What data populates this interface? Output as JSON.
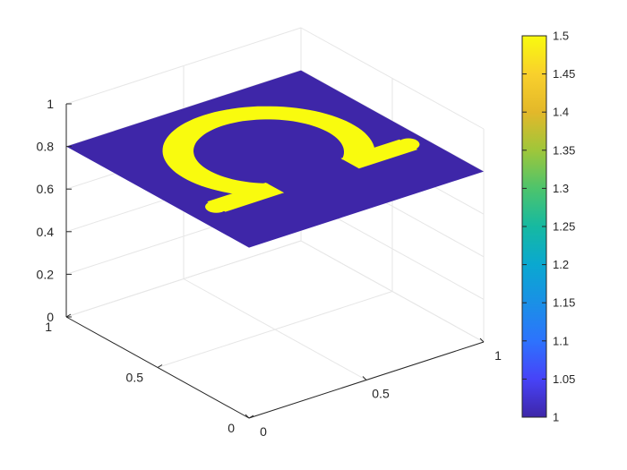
{
  "chart_data": {
    "type": "surface",
    "title": "",
    "xlabel": "",
    "ylabel": "",
    "zlabel": "",
    "x_ticks": [
      "0",
      "0.5",
      "1"
    ],
    "y_ticks": [
      "0",
      "0.5",
      "1"
    ],
    "z_ticks": [
      "0",
      "0.2",
      "0.4",
      "0.6",
      "0.8",
      "1"
    ],
    "xlim": [
      0,
      1
    ],
    "ylim": [
      0,
      1
    ],
    "zlim": [
      0,
      1
    ],
    "surface_z": 0.8,
    "grid": true,
    "view": "3-D perspective, flat plane at z = 0.8",
    "field": {
      "domain_value": 1,
      "shape_value": 1.5,
      "shape": "Greek capital letter Omega",
      "shape_color": "#f9fb0e",
      "domain_color": "#3e26a8"
    },
    "colorbar": {
      "colormap": "parula",
      "range": [
        1,
        1.5
      ],
      "ticks": [
        "1",
        "1.05",
        "1.1",
        "1.15",
        "1.2",
        "1.25",
        "1.3",
        "1.35",
        "1.4",
        "1.45",
        "1.5"
      ],
      "placement": "right"
    }
  }
}
